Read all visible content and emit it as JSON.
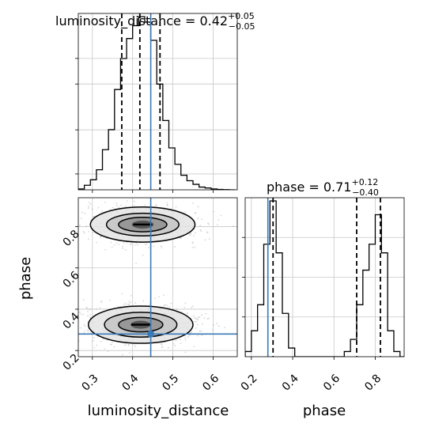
{
  "chart_data": {
    "type": "corner",
    "parameters": [
      "luminosity_distance",
      "phase"
    ],
    "truth": {
      "luminosity_distance": 0.445,
      "phase": 0.28
    },
    "colors": {
      "truth": "#3b79b6",
      "hist": "#000000",
      "grid": "#c8c8c8",
      "scatter": "#8c8c8c"
    },
    "grid": true,
    "panels": [
      {
        "name": "luminosity_distance-hist",
        "type": "histogram",
        "title": {
          "main": "luminosity_distance = 0.42",
          "sup": "+0.05",
          "sub": "−0.05"
        },
        "xlim": [
          0.265,
          0.66
        ],
        "bin_edges": [
          0.265,
          0.28,
          0.295,
          0.31,
          0.325,
          0.34,
          0.355,
          0.37,
          0.385,
          0.4,
          0.415,
          0.43,
          0.445,
          0.46,
          0.475,
          0.49,
          0.505,
          0.52,
          0.535,
          0.55,
          0.565,
          0.58,
          0.595,
          0.61,
          0.625,
          0.64,
          0.655
        ],
        "counts": [
          0.5,
          2.5,
          5.5,
          11,
          22,
          33,
          55,
          72,
          83,
          90,
          95,
          92,
          82,
          58,
          38,
          23,
          14,
          8,
          5,
          3,
          1.5,
          1,
          0.5,
          0.2,
          0.1,
          0
        ],
        "quantiles": [
          0.373,
          0.418,
          0.468
        ],
        "xticks": [
          0.3,
          0.4,
          0.5,
          0.6
        ]
      },
      {
        "name": "phase-hist",
        "type": "histogram",
        "title": {
          "main": "phase = 0.71",
          "sup": "+0.12",
          "sub": "−0.40"
        },
        "xlim": [
          0.17,
          0.94
        ],
        "bin_edges": [
          0.17,
          0.2,
          0.23,
          0.26,
          0.29,
          0.32,
          0.35,
          0.38,
          0.41,
          0.44,
          0.47,
          0.5,
          0.53,
          0.56,
          0.59,
          0.62,
          0.65,
          0.68,
          0.71,
          0.74,
          0.77,
          0.8,
          0.83,
          0.86,
          0.89,
          0.92,
          0.94
        ],
        "counts": [
          3,
          15,
          30,
          65,
          90,
          60,
          25,
          5,
          0,
          0,
          0,
          0,
          0,
          0,
          0,
          0,
          3,
          10,
          30,
          50,
          65,
          82,
          60,
          15,
          3,
          0
        ],
        "quantiles": [
          0.305,
          0.71,
          0.825
        ],
        "xticks": [
          0.2,
          0.4,
          0.6,
          0.8
        ],
        "xtick_labels": [
          "0.2",
          "0.4",
          "0.6",
          "0.8"
        ],
        "xlabel": "phase"
      },
      {
        "name": "luminosity_distance-phase-2d",
        "type": "density2d",
        "xlim": [
          0.265,
          0.66
        ],
        "ylim": [
          0.17,
          0.94
        ],
        "xticks": [
          0.3,
          0.4,
          0.5,
          0.6
        ],
        "xtick_labels": [
          "0.3",
          "0.4",
          "0.5",
          "0.6"
        ],
        "yticks": [
          0.2,
          0.4,
          0.6,
          0.8
        ],
        "ytick_labels": [
          "0.2",
          "0.4",
          "0.6",
          "0.8"
        ],
        "xlabel": "luminosity_distance",
        "ylabel": "phase",
        "modes": [
          {
            "cx": 0.425,
            "cy": 0.81,
            "rx": [
              0.06,
              0.09,
              0.13
            ],
            "ry": [
              0.035,
              0.055,
              0.085
            ]
          },
          {
            "cx": 0.42,
            "cy": 0.325,
            "rx": [
              0.055,
              0.09,
              0.13
            ],
            "ry": [
              0.035,
              0.06,
              0.09
            ]
          }
        ]
      }
    ]
  }
}
